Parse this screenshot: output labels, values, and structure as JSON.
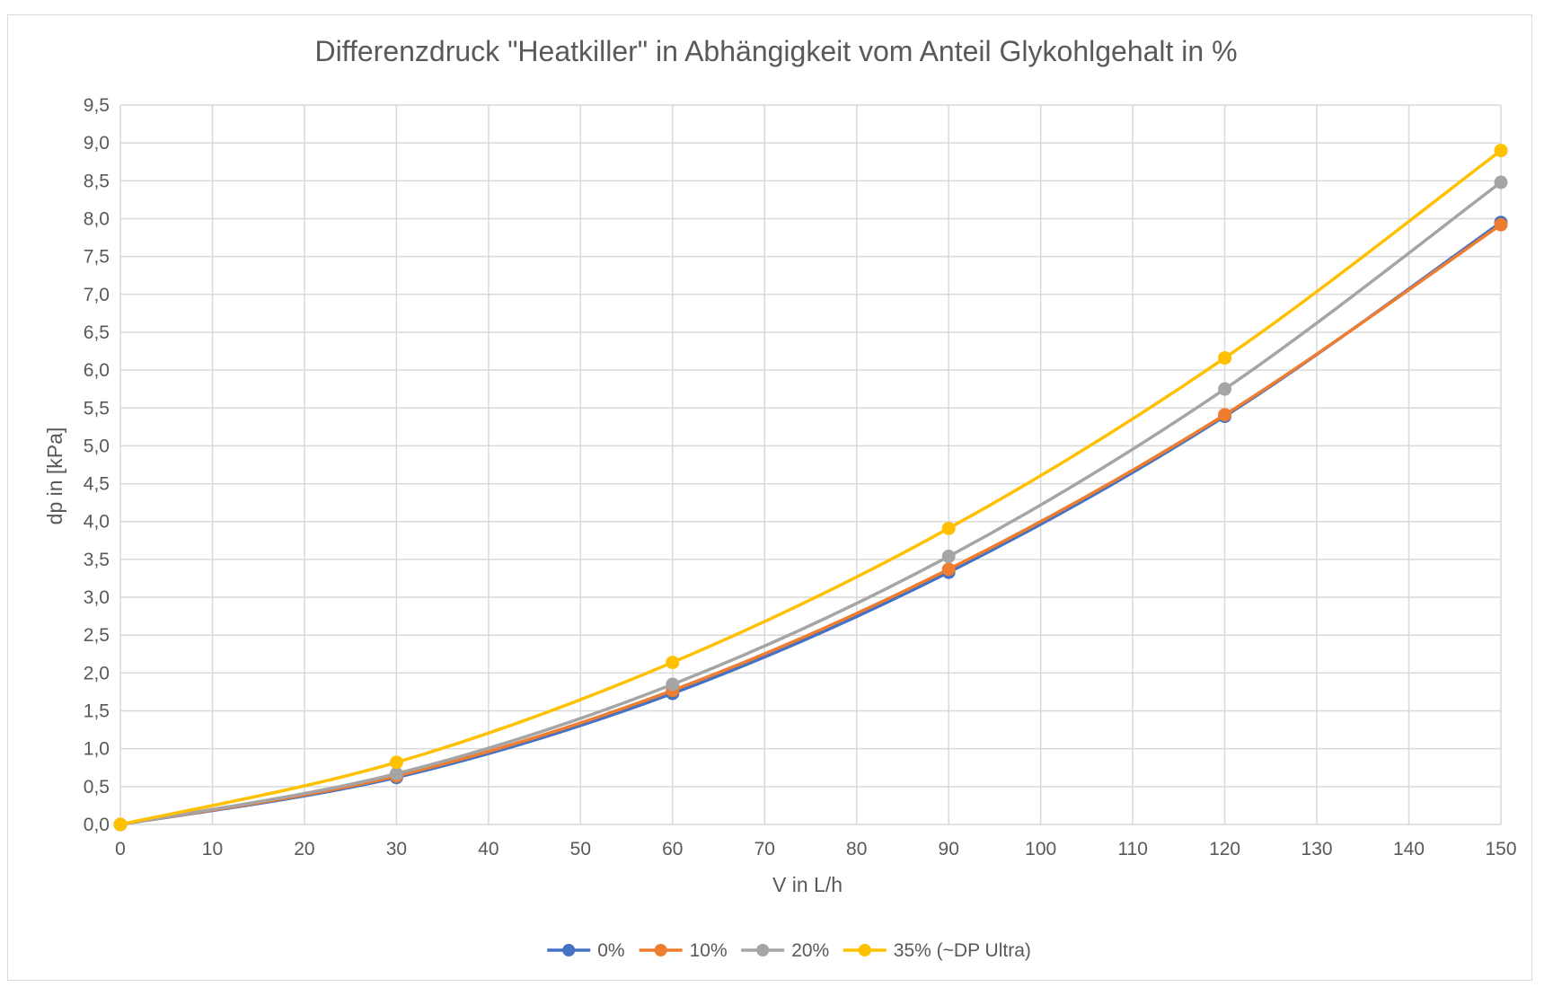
{
  "chart_data": {
    "type": "line",
    "title": "Differenzdruck \"Heatkiller\" in Abhängigkeit vom Anteil Glykohlgehalt in %",
    "xlabel": "V in L/h",
    "ylabel": "dp in [kPa]",
    "xlim": [
      0,
      150
    ],
    "ylim": [
      0,
      9.5
    ],
    "x_ticks": [
      "0",
      "10",
      "20",
      "30",
      "40",
      "50",
      "60",
      "70",
      "80",
      "90",
      "100",
      "110",
      "120",
      "130",
      "140",
      "150"
    ],
    "y_ticks": [
      "0,0",
      "0,5",
      "1,0",
      "1,5",
      "2,0",
      "2,5",
      "3,0",
      "3,5",
      "4,0",
      "4,5",
      "5,0",
      "5,5",
      "6,0",
      "6,5",
      "7,0",
      "7,5",
      "8,0",
      "8,5",
      "9,0",
      "9,5"
    ],
    "grid": true,
    "smooth": true,
    "legend_position": "bottom",
    "x": [
      0,
      30,
      60,
      90,
      120,
      150
    ],
    "series": [
      {
        "name": "0%",
        "color": "#4472c4",
        "values": [
          0,
          0.62,
          1.73,
          3.33,
          5.39,
          7.95
        ]
      },
      {
        "name": "10%",
        "color": "#ed7d31",
        "values": [
          0,
          0.64,
          1.77,
          3.37,
          5.41,
          7.92
        ]
      },
      {
        "name": "20%",
        "color": "#a5a5a5",
        "values": [
          0,
          0.67,
          1.85,
          3.54,
          5.75,
          8.48
        ]
      },
      {
        "name": "35% (~DP Ultra)",
        "color": "#ffc000",
        "values": [
          0,
          0.82,
          2.14,
          3.91,
          6.16,
          8.9
        ]
      }
    ]
  },
  "colors": {
    "grid": "#d9d9d9",
    "text": "#595959"
  }
}
